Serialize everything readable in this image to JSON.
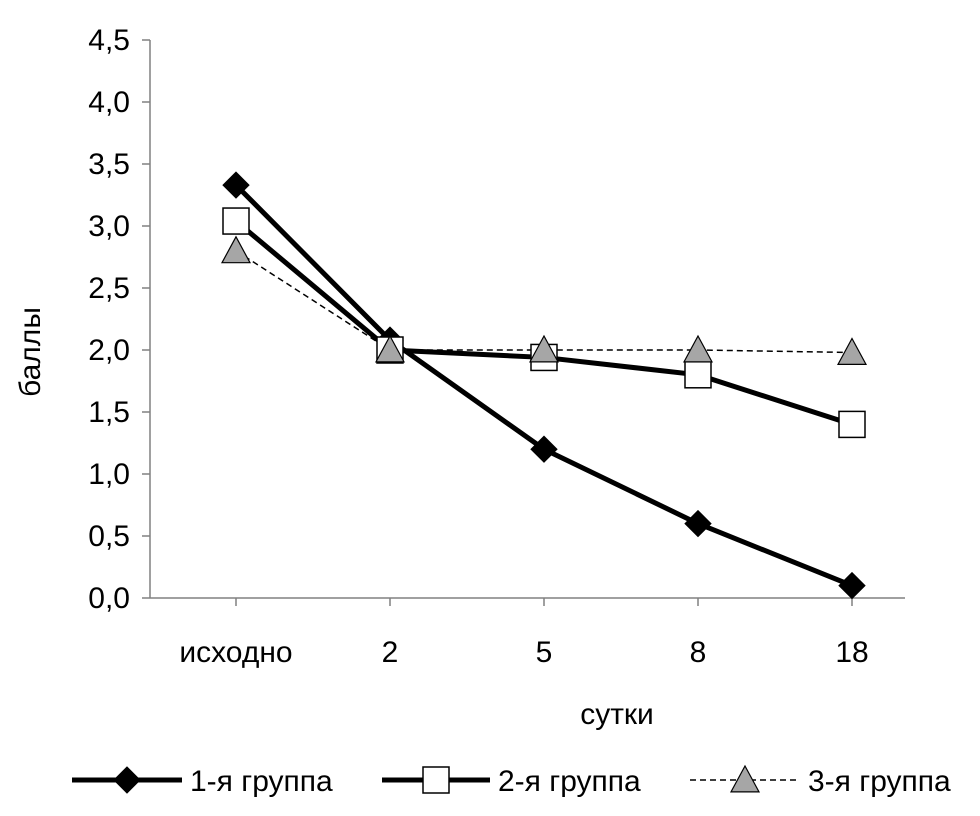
{
  "chart_data": {
    "type": "line",
    "title": "",
    "xlabel": "сутки",
    "ylabel": "баллы",
    "categories": [
      "исходно",
      "2",
      "5",
      "8",
      "18"
    ],
    "ylim": [
      0,
      4.5
    ],
    "yticks": [
      "0,0",
      "0,5",
      "1,0",
      "1,5",
      "2,0",
      "2,5",
      "3,0",
      "3,5",
      "4,0",
      "4,5"
    ],
    "grid": false,
    "legend_position": "bottom",
    "series": [
      {
        "name": "1-я группа",
        "values": [
          3.33,
          2.08,
          1.2,
          0.6,
          0.1
        ],
        "marker": "diamond",
        "line_style": "solid",
        "line_color": "#000000",
        "marker_fill": "#000000"
      },
      {
        "name": "2-я группа",
        "values": [
          3.04,
          2.0,
          1.94,
          1.8,
          1.4
        ],
        "marker": "square",
        "line_style": "solid",
        "line_color": "#000000",
        "marker_fill": "#ffffff"
      },
      {
        "name": "3-я группа",
        "values": [
          2.8,
          2.0,
          2.0,
          2.0,
          1.98
        ],
        "marker": "triangle",
        "line_style": "dashed",
        "line_color": "#000000",
        "marker_fill": "#a6a6a6"
      }
    ]
  }
}
